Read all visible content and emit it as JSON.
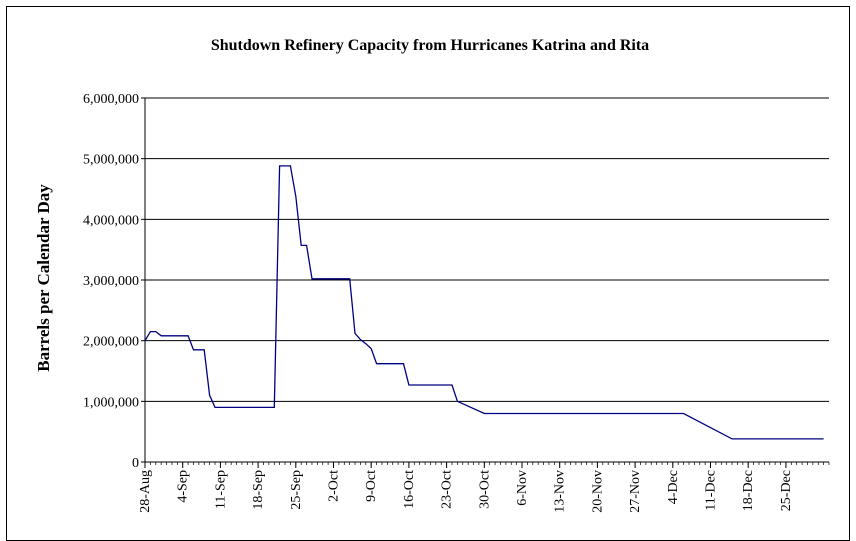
{
  "chart_data": {
    "type": "line",
    "title": "Shutdown Refinery Capacity from Hurricanes Katrina and Rita",
    "xlabel": "",
    "ylabel": "Barrels per Calendar Day",
    "ylim": [
      0,
      6000000
    ],
    "yticks": [
      0,
      1000000,
      2000000,
      3000000,
      4000000,
      5000000,
      6000000
    ],
    "ytick_labels": [
      "0",
      "1,000,000",
      "2,000,000",
      "3,000,000",
      "4,000,000",
      "5,000,000",
      "6,000,000"
    ],
    "x_start": "2005-08-28",
    "x_end": "2006-01-02",
    "xtick_labels": [
      "28-Aug",
      "4-Sep",
      "11-Sep",
      "18-Sep",
      "25-Sep",
      "2-Oct",
      "9-Oct",
      "16-Oct",
      "23-Oct",
      "30-Oct",
      "6-Nov",
      "13-Nov",
      "20-Nov",
      "27-Nov",
      "4-Dec",
      "11-Dec",
      "18-Dec",
      "25-Dec"
    ],
    "grid": "horizontal",
    "line_color": "#000080",
    "series": [
      {
        "x": [
          "2005-08-28",
          "2005-08-29",
          "2005-08-30",
          "2005-08-31",
          "2005-09-01",
          "2005-09-02",
          "2005-09-03",
          "2005-09-04",
          "2005-09-05",
          "2005-09-06",
          "2005-09-07",
          "2005-09-08",
          "2005-09-09",
          "2005-09-10",
          "2005-09-11",
          "2005-09-12",
          "2005-09-13",
          "2005-09-20",
          "2005-09-21",
          "2005-09-22",
          "2005-09-23",
          "2005-09-24",
          "2005-09-25",
          "2005-09-26",
          "2005-09-27",
          "2005-09-28",
          "2005-10-04",
          "2005-10-05",
          "2005-10-06",
          "2005-10-07",
          "2005-10-08",
          "2005-10-09",
          "2005-10-10",
          "2005-10-11",
          "2005-10-12",
          "2005-10-13",
          "2005-10-14",
          "2005-10-15",
          "2005-10-16",
          "2005-10-17",
          "2005-10-18",
          "2005-10-24",
          "2005-10-25",
          "2005-10-30",
          "2005-12-06",
          "2005-12-15",
          "2005-12-16",
          "2006-01-01"
        ],
        "values": [
          2000000,
          2150000,
          2150000,
          2080000,
          2080000,
          2080000,
          2080000,
          2080000,
          2080000,
          1850000,
          1850000,
          1850000,
          1100000,
          900000,
          900000,
          900000,
          900000,
          900000,
          900000,
          4880000,
          4880000,
          4880000,
          4380000,
          3570000,
          3570000,
          3020000,
          3020000,
          3020000,
          2120000,
          2020000,
          1950000,
          1870000,
          1620000,
          1620000,
          1620000,
          1620000,
          1620000,
          1620000,
          1270000,
          1270000,
          1270000,
          1270000,
          1000000,
          800000,
          800000,
          380000,
          380000,
          380000
        ]
      }
    ]
  }
}
